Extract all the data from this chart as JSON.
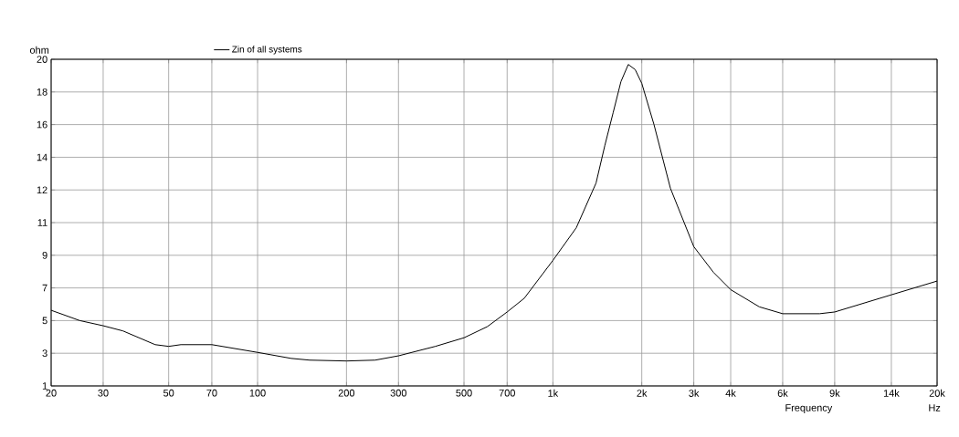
{
  "chart_data": {
    "type": "line",
    "xlabel": "Frequency",
    "ylabel": "ohm",
    "annotations": [
      "Hz"
    ],
    "x": [
      20,
      25,
      30,
      35,
      45,
      50,
      55,
      70,
      100,
      130,
      150,
      200,
      250,
      300,
      400,
      500,
      600,
      700,
      800,
      1000,
      1200,
      1400,
      1500,
      1600,
      1700,
      1800,
      1900,
      2000,
      2200,
      2500,
      3000,
      3500,
      4000,
      5000,
      6000,
      8000,
      9000,
      14000,
      20000
    ],
    "series": [
      {
        "name": "Zin of all systems",
        "color": "#000000",
        "values": [
          5.4,
          4.8,
          4.5,
          4.2,
          3.4,
          3.3,
          3.4,
          3.4,
          2.95,
          2.6,
          2.5,
          2.45,
          2.5,
          2.75,
          3.3,
          3.8,
          4.45,
          5.3,
          6.1,
          8.3,
          10.2,
          12.8,
          15.0,
          16.9,
          18.7,
          19.7,
          19.4,
          18.6,
          16.2,
          12.5,
          9.1,
          7.6,
          6.6,
          5.6,
          5.2,
          5.2,
          5.3,
          6.3,
          7.1
        ]
      }
    ],
    "log": "x",
    "xlim": [
      20,
      20000
    ],
    "ylim": [
      1,
      20
    ],
    "xticks": [
      20,
      30,
      50,
      70,
      100,
      200,
      300,
      500,
      700,
      {
        "value": 1000,
        "label": "1k"
      },
      {
        "value": 2000,
        "label": "2k"
      },
      {
        "value": 3000,
        "label": "3k"
      },
      {
        "value": 4000,
        "label": "4k"
      },
      {
        "value": 6000,
        "label": "6k"
      },
      {
        "value": 9000,
        "label": "9k"
      },
      {
        "value": 14000,
        "label": "14k"
      },
      {
        "value": 20000,
        "label": "20k"
      }
    ],
    "yticks": [
      1,
      {
        "value": 2.9,
        "label": "3"
      },
      {
        "value": 4.8,
        "label": "5"
      },
      {
        "value": 6.7,
        "label": "7"
      },
      {
        "value": 8.6,
        "label": "9"
      },
      {
        "value": 10.5,
        "label": "11"
      },
      {
        "value": 12.4,
        "label": "12"
      },
      {
        "value": 14.3,
        "label": "14"
      },
      {
        "value": 16.2,
        "label": "16"
      },
      {
        "value": 18.1,
        "label": "18"
      },
      20
    ],
    "grid": true,
    "legend": "top",
    "marker": "none",
    "line_style": "solid"
  }
}
